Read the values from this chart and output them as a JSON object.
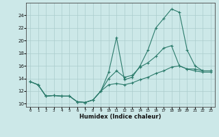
{
  "xlabel": "Humidex (Indice chaleur)",
  "background_color": "#cce8e8",
  "grid_color": "#aacccc",
  "line_color": "#2a7a6a",
  "xlim": [
    -0.5,
    23.5
  ],
  "ylim": [
    9.5,
    26.0
  ],
  "yticks": [
    10,
    12,
    14,
    16,
    18,
    20,
    22,
    24
  ],
  "xticks": [
    0,
    1,
    2,
    3,
    4,
    5,
    6,
    7,
    8,
    9,
    10,
    11,
    12,
    13,
    14,
    15,
    16,
    17,
    18,
    19,
    20,
    21,
    22,
    23
  ],
  "series": [
    [
      13.5,
      13.0,
      11.2,
      11.3,
      11.2,
      11.2,
      10.3,
      10.2,
      10.6,
      12.0,
      15.0,
      20.5,
      13.8,
      14.2,
      16.0,
      18.5,
      22.0,
      23.5,
      25.0,
      24.5,
      18.5,
      16.0,
      15.2,
      15.2
    ],
    [
      13.5,
      13.0,
      11.2,
      11.3,
      11.2,
      11.2,
      10.3,
      10.2,
      10.6,
      12.0,
      14.0,
      15.2,
      14.2,
      14.5,
      15.8,
      16.5,
      17.5,
      18.8,
      19.2,
      16.0,
      15.5,
      15.5,
      15.2,
      15.2
    ],
    [
      13.5,
      13.0,
      11.2,
      11.3,
      11.2,
      11.2,
      10.3,
      10.2,
      10.6,
      12.0,
      13.0,
      13.2,
      13.0,
      13.3,
      13.8,
      14.2,
      14.8,
      15.2,
      15.8,
      16.0,
      15.5,
      15.2,
      15.0,
      15.0
    ]
  ]
}
